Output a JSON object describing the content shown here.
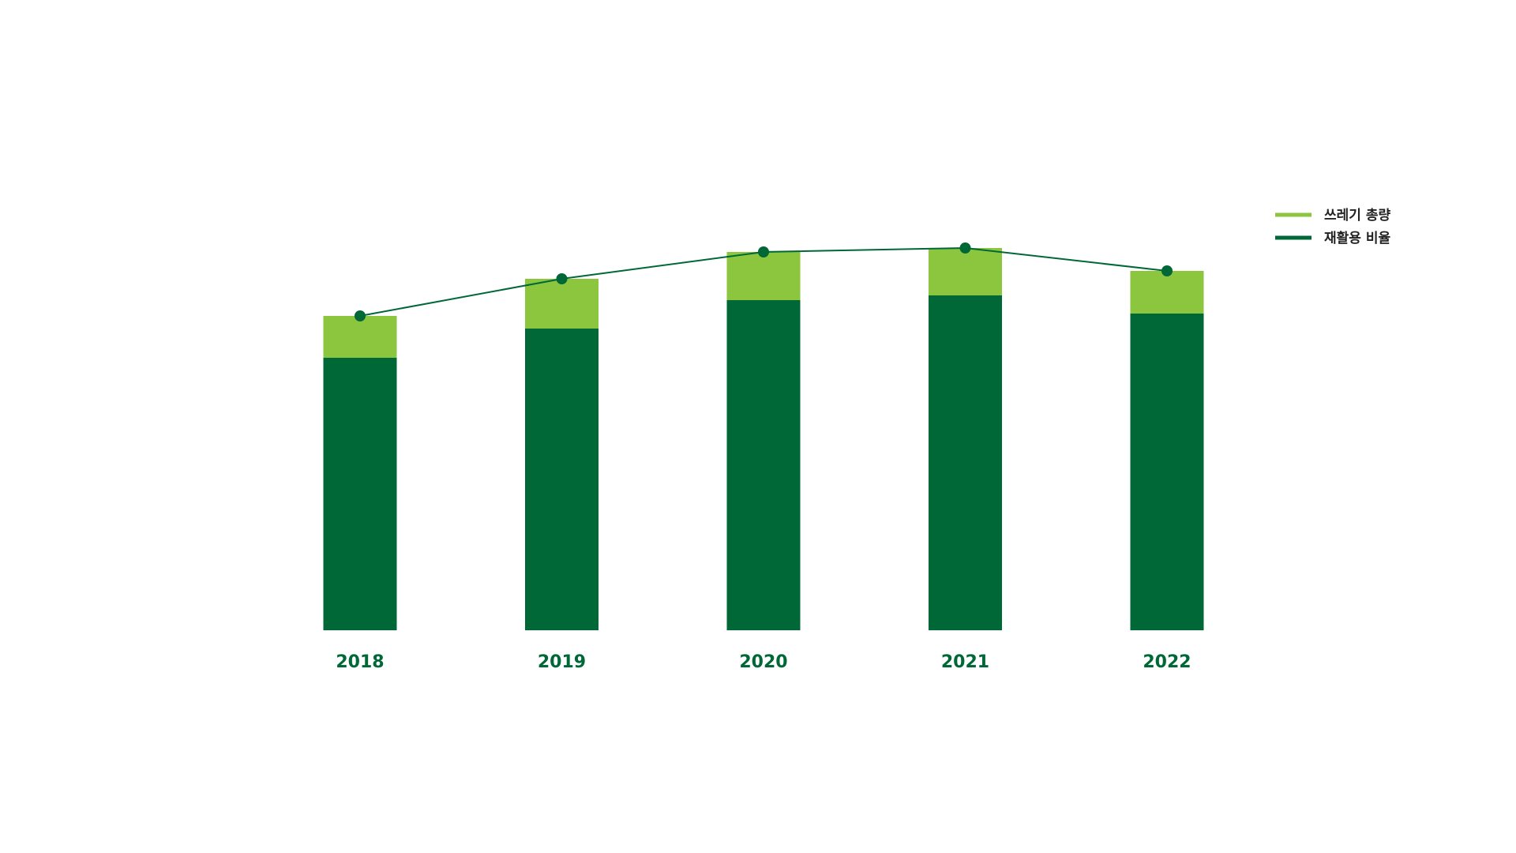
{
  "chart_data": {
    "type": "bar",
    "stacked": true,
    "categories": [
      "2018",
      "2019",
      "2020",
      "2021",
      "2022"
    ],
    "series": [
      {
        "name": "재활용 비율",
        "kind": "bar",
        "color": "#006837",
        "values": [
          345,
          382,
          418,
          424,
          401
        ]
      },
      {
        "name": "쓰레기 총량",
        "kind": "bar",
        "color": "#8cc63f",
        "values": [
          53,
          63,
          61,
          60,
          54
        ]
      },
      {
        "name": "",
        "kind": "line",
        "color": "#006837",
        "values": [
          398,
          445,
          479,
          484,
          455
        ]
      }
    ],
    "legend": [
      {
        "label": "쓰레기 총량",
        "color": "#8cc63f"
      },
      {
        "label": "재활용 비율",
        "color": "#006837"
      }
    ],
    "legend_position": "top-right",
    "ylim": [
      0,
      500
    ],
    "grid": false,
    "title": "",
    "xlabel": "",
    "ylabel": "",
    "tick_color": "#006837"
  }
}
